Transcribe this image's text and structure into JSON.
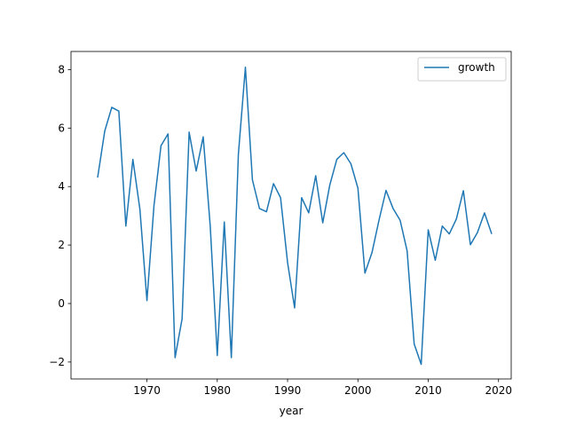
{
  "chart_data": {
    "type": "line",
    "title": "",
    "xlabel": "year",
    "ylabel": "",
    "xlim": [
      1959.2,
      2021.8
    ],
    "ylim": [
      -2.58,
      8.62
    ],
    "xticks": [
      1970,
      1980,
      1990,
      2000,
      2010,
      2020
    ],
    "yticks": [
      -2,
      0,
      2,
      4,
      6,
      8
    ],
    "grid": false,
    "legend": "top-right",
    "series": [
      {
        "name": "growth",
        "color": "#1f77b4",
        "x": [
          1963,
          1964,
          1965,
          1966,
          1967,
          1968,
          1969,
          1970,
          1971,
          1972,
          1973,
          1974,
          1975,
          1976,
          1977,
          1978,
          1979,
          1980,
          1981,
          1982,
          1983,
          1984,
          1985,
          1986,
          1987,
          1988,
          1989,
          1990,
          1991,
          1992,
          1993,
          1994,
          1995,
          1996,
          1997,
          1998,
          1999,
          2000,
          2001,
          2002,
          2003,
          2004,
          2005,
          2006,
          2007,
          2008,
          2009,
          2010,
          2011,
          2012,
          2013,
          2014,
          2015,
          2016,
          2017,
          2018,
          2019
        ],
        "values": [
          4.33,
          5.9,
          6.71,
          6.58,
          2.65,
          4.93,
          3.22,
          0.1,
          3.35,
          5.4,
          5.8,
          -1.85,
          -0.52,
          5.86,
          4.53,
          5.7,
          2.65,
          -1.78,
          2.79,
          -1.85,
          5.1,
          8.08,
          4.23,
          3.25,
          3.14,
          4.1,
          3.62,
          1.4,
          -0.15,
          3.62,
          3.1,
          4.37,
          2.76,
          4.05,
          4.93,
          5.16,
          4.78,
          3.95,
          1.04,
          1.74,
          2.85,
          3.87,
          3.25,
          2.85,
          1.8,
          -1.38,
          -2.08,
          2.52,
          1.48,
          2.65,
          2.38,
          2.89,
          3.86,
          2.01,
          2.43,
          3.1,
          2.4
        ]
      }
    ]
  }
}
